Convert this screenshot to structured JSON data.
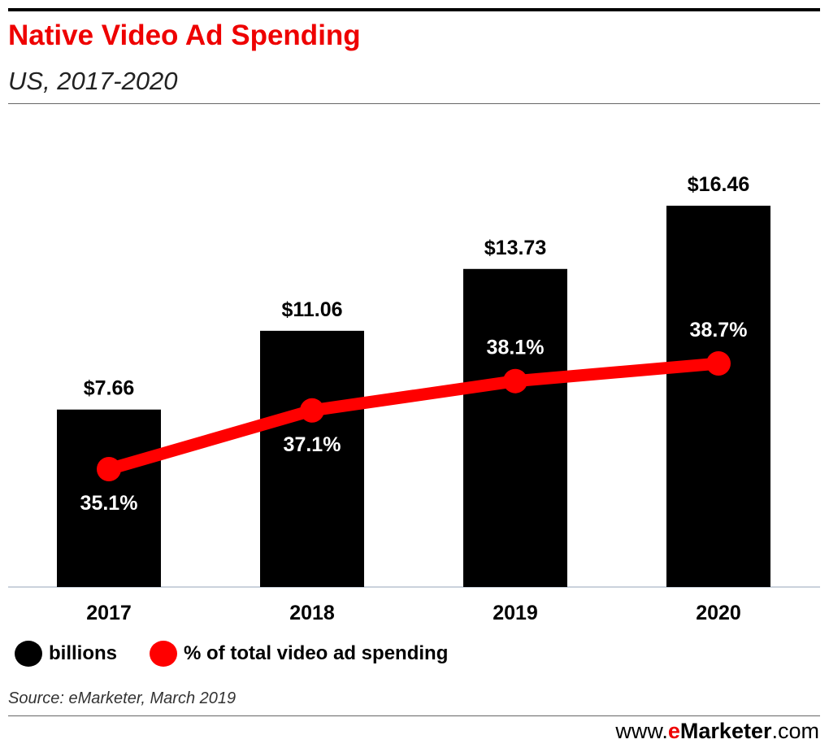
{
  "header": {
    "title": "Native Video Ad Spending",
    "subtitle": "US, 2017-2020"
  },
  "chart_data": {
    "type": "bar",
    "categories": [
      "2017",
      "2018",
      "2019",
      "2020"
    ],
    "series": [
      {
        "name": "billions",
        "type": "bar",
        "values": [
          7.66,
          11.06,
          13.73,
          16.46
        ],
        "labels": [
          "$7.66",
          "$11.06",
          "$13.73",
          "$16.46"
        ],
        "color": "#000000"
      },
      {
        "name": "% of total video ad spending",
        "type": "line",
        "values": [
          35.1,
          37.1,
          38.1,
          38.7
        ],
        "labels": [
          "35.1%",
          "37.1%",
          "38.1%",
          "38.7%"
        ],
        "color": "#ff0000"
      }
    ],
    "grid": false,
    "legend": "bottom-left"
  },
  "legend": {
    "bar_label": "billions",
    "line_label": "% of total video ad spending",
    "bar_color": "#000000",
    "line_color": "#ff0000"
  },
  "footer": {
    "source": "Source: eMarketer, March 2019",
    "brand_prefix": "www.",
    "brand_e": "e",
    "brand_name": "Marketer",
    "brand_suffix": ".com"
  }
}
